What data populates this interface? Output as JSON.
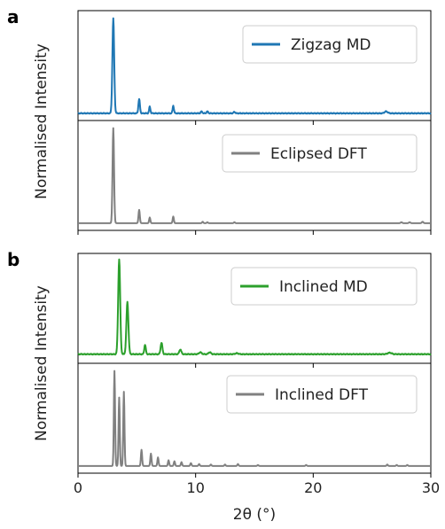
{
  "chart_data": {
    "type": "line",
    "xlabel": "2θ (°)",
    "ylabel": "Normalised Intensity",
    "xlim": [
      0,
      30
    ],
    "x_ticks": [
      "0",
      "10",
      "20",
      "30"
    ],
    "grid": false,
    "legend_placement": "top-right",
    "groups": [
      {
        "label": "a",
        "ylabel": "Normalised Intensity",
        "panels": [
          {
            "name": "Zigzag MD",
            "color": "#1f77b4",
            "baseline": 0.02,
            "noise": 0.005,
            "peaks": [
              {
                "x": 3.0,
                "height": 1.0,
                "width": 0.18
              },
              {
                "x": 5.2,
                "height": 0.15,
                "width": 0.15
              },
              {
                "x": 6.1,
                "height": 0.07,
                "width": 0.13
              },
              {
                "x": 8.1,
                "height": 0.08,
                "width": 0.13
              },
              {
                "x": 10.5,
                "height": 0.02,
                "width": 0.15
              },
              {
                "x": 11.0,
                "height": 0.02,
                "width": 0.15
              },
              {
                "x": 13.3,
                "height": 0.015,
                "width": 0.15
              },
              {
                "x": 26.2,
                "height": 0.02,
                "width": 0.3
              }
            ]
          },
          {
            "name": "Eclipsed DFT",
            "color": "#808080",
            "baseline": 0.02,
            "noise": 0.0,
            "peaks": [
              {
                "x": 3.0,
                "height": 1.0,
                "width": 0.15
              },
              {
                "x": 5.2,
                "height": 0.14,
                "width": 0.13
              },
              {
                "x": 6.1,
                "height": 0.06,
                "width": 0.12
              },
              {
                "x": 8.1,
                "height": 0.07,
                "width": 0.12
              },
              {
                "x": 10.6,
                "height": 0.015,
                "width": 0.12
              },
              {
                "x": 11.0,
                "height": 0.01,
                "width": 0.12
              },
              {
                "x": 13.3,
                "height": 0.01,
                "width": 0.12
              },
              {
                "x": 27.5,
                "height": 0.01,
                "width": 0.15
              },
              {
                "x": 28.2,
                "height": 0.01,
                "width": 0.15
              },
              {
                "x": 29.3,
                "height": 0.015,
                "width": 0.15
              }
            ]
          }
        ]
      },
      {
        "label": "b",
        "ylabel": "Normalised Intensity",
        "panels": [
          {
            "name": "Inclined MD",
            "color": "#2ca02c",
            "baseline": 0.04,
            "noise": 0.005,
            "peaks": [
              {
                "x": 3.5,
                "height": 1.0,
                "width": 0.2
              },
              {
                "x": 4.2,
                "height": 0.55,
                "width": 0.2
              },
              {
                "x": 5.7,
                "height": 0.1,
                "width": 0.15
              },
              {
                "x": 7.1,
                "height": 0.12,
                "width": 0.18
              },
              {
                "x": 8.7,
                "height": 0.05,
                "width": 0.2
              },
              {
                "x": 10.4,
                "height": 0.02,
                "width": 0.25
              },
              {
                "x": 11.2,
                "height": 0.02,
                "width": 0.25
              },
              {
                "x": 13.5,
                "height": 0.01,
                "width": 0.3
              },
              {
                "x": 26.5,
                "height": 0.015,
                "width": 0.4
              }
            ]
          },
          {
            "name": "Inclined DFT",
            "color": "#808080",
            "baseline": 0.02,
            "noise": 0.0,
            "peaks": [
              {
                "x": 3.1,
                "height": 1.0,
                "width": 0.12
              },
              {
                "x": 3.5,
                "height": 0.72,
                "width": 0.12
              },
              {
                "x": 3.9,
                "height": 0.78,
                "width": 0.12
              },
              {
                "x": 5.4,
                "height": 0.17,
                "width": 0.12
              },
              {
                "x": 6.2,
                "height": 0.13,
                "width": 0.12
              },
              {
                "x": 6.8,
                "height": 0.09,
                "width": 0.12
              },
              {
                "x": 7.7,
                "height": 0.06,
                "width": 0.12
              },
              {
                "x": 8.2,
                "height": 0.05,
                "width": 0.12
              },
              {
                "x": 8.8,
                "height": 0.04,
                "width": 0.12
              },
              {
                "x": 9.6,
                "height": 0.03,
                "width": 0.12
              },
              {
                "x": 10.3,
                "height": 0.02,
                "width": 0.12
              },
              {
                "x": 11.3,
                "height": 0.015,
                "width": 0.12
              },
              {
                "x": 12.5,
                "height": 0.015,
                "width": 0.12
              },
              {
                "x": 13.6,
                "height": 0.02,
                "width": 0.12
              },
              {
                "x": 15.3,
                "height": 0.01,
                "width": 0.12
              },
              {
                "x": 19.4,
                "height": 0.01,
                "width": 0.12
              },
              {
                "x": 26.3,
                "height": 0.015,
                "width": 0.12
              },
              {
                "x": 27.1,
                "height": 0.01,
                "width": 0.12
              },
              {
                "x": 28.0,
                "height": 0.01,
                "width": 0.12
              }
            ]
          }
        ]
      }
    ]
  }
}
